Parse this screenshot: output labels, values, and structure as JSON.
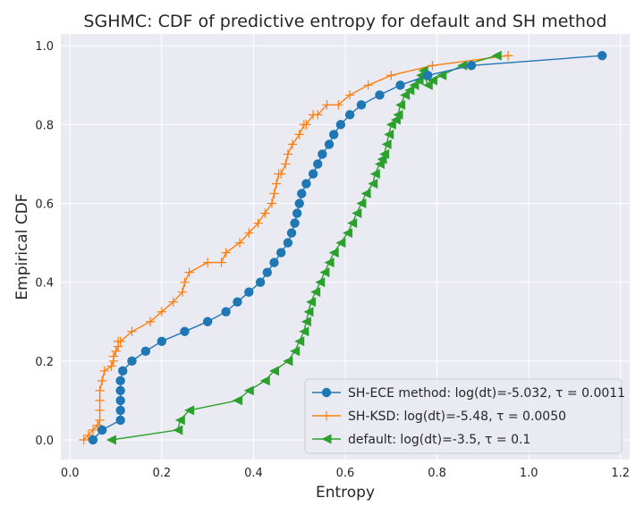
{
  "chart_data": {
    "type": "line",
    "title": "SGHMC: CDF of predictive entropy for default and SH method",
    "xlabel": "Entropy",
    "ylabel": "Empirical CDF",
    "xlim": [
      -0.02,
      1.22
    ],
    "ylim": [
      -0.05,
      1.03
    ],
    "xticks": [
      "0.0",
      "0.2",
      "0.4",
      "0.6",
      "0.8",
      "1.0",
      "1.2"
    ],
    "yticks": [
      "0.0",
      "0.2",
      "0.4",
      "0.6",
      "0.8",
      "1.0"
    ],
    "grid": true,
    "legend_position": "lower-right",
    "series": [
      {
        "name": "SH-ECE",
        "legend_prefix": "SH-ECE method: log(dt)=-5.032, ",
        "legend_tau": "τ = 0.0011",
        "color": "#1f77b4",
        "marker": "circle",
        "x": [
          0.05,
          0.07,
          0.11,
          0.11,
          0.11,
          0.11,
          0.11,
          0.115,
          0.135,
          0.165,
          0.2,
          0.25,
          0.3,
          0.34,
          0.365,
          0.39,
          0.415,
          0.43,
          0.445,
          0.46,
          0.475,
          0.483,
          0.49,
          0.495,
          0.5,
          0.505,
          0.515,
          0.53,
          0.54,
          0.55,
          0.565,
          0.575,
          0.59,
          0.61,
          0.635,
          0.675,
          0.72,
          0.78,
          0.875,
          1.16
        ],
        "y": [
          0.0,
          0.025,
          0.05,
          0.075,
          0.1,
          0.125,
          0.15,
          0.175,
          0.2,
          0.225,
          0.25,
          0.275,
          0.3,
          0.325,
          0.35,
          0.375,
          0.4,
          0.425,
          0.45,
          0.475,
          0.5,
          0.525,
          0.55,
          0.575,
          0.6,
          0.625,
          0.65,
          0.675,
          0.7,
          0.725,
          0.75,
          0.775,
          0.8,
          0.825,
          0.85,
          0.875,
          0.9,
          0.925,
          0.95,
          0.975
        ]
      },
      {
        "name": "SH-KSD",
        "legend_prefix": "SH-KSD: log(dt)=-5.48, ",
        "legend_tau": "τ = 0.0050",
        "color": "#ff7f0e",
        "marker": "plus",
        "x": [
          0.03,
          0.04,
          0.05,
          0.06,
          0.065,
          0.065,
          0.065,
          0.065,
          0.07,
          0.075,
          0.09,
          0.095,
          0.095,
          0.1,
          0.105,
          0.105,
          0.11,
          0.135,
          0.175,
          0.2,
          0.225,
          0.245,
          0.25,
          0.26,
          0.3,
          0.33,
          0.34,
          0.37,
          0.39,
          0.41,
          0.425,
          0.44,
          0.445,
          0.45,
          0.455,
          0.46,
          0.47,
          0.475,
          0.485,
          0.5,
          0.51,
          0.515,
          0.53,
          0.54,
          0.56,
          0.585,
          0.61,
          0.65,
          0.7,
          0.79,
          0.955
        ],
        "y": [
          0.0,
          0.012,
          0.025,
          0.037,
          0.05,
          0.075,
          0.1,
          0.125,
          0.15,
          0.175,
          0.187,
          0.2,
          0.212,
          0.225,
          0.237,
          0.25,
          0.25,
          0.275,
          0.3,
          0.325,
          0.35,
          0.375,
          0.4,
          0.425,
          0.45,
          0.45,
          0.475,
          0.5,
          0.525,
          0.55,
          0.575,
          0.6,
          0.625,
          0.65,
          0.675,
          0.675,
          0.7,
          0.725,
          0.75,
          0.775,
          0.8,
          0.8,
          0.825,
          0.825,
          0.85,
          0.85,
          0.875,
          0.9,
          0.925,
          0.95,
          0.975
        ]
      },
      {
        "name": "default",
        "legend_prefix": "default: log(dt)=-3.5, ",
        "legend_tau": "τ = 0.1",
        "color": "#2ca02c",
        "marker": "triangle-left",
        "x": [
          0.09,
          0.235,
          0.24,
          0.26,
          0.365,
          0.39,
          0.425,
          0.445,
          0.475,
          0.49,
          0.5,
          0.51,
          0.515,
          0.52,
          0.525,
          0.535,
          0.545,
          0.555,
          0.565,
          0.575,
          0.59,
          0.605,
          0.615,
          0.625,
          0.635,
          0.645,
          0.66,
          0.665,
          0.675,
          0.68,
          0.685,
          0.69,
          0.695,
          0.7,
          0.71,
          0.715,
          0.72,
          0.73,
          0.74,
          0.75,
          0.76,
          0.765,
          0.77,
          0.78,
          0.79,
          0.81,
          0.855,
          0.93
        ],
        "y": [
          0.0,
          0.025,
          0.05,
          0.075,
          0.1,
          0.125,
          0.15,
          0.175,
          0.2,
          0.225,
          0.25,
          0.275,
          0.3,
          0.325,
          0.35,
          0.375,
          0.4,
          0.425,
          0.45,
          0.475,
          0.5,
          0.525,
          0.55,
          0.575,
          0.6,
          0.625,
          0.65,
          0.675,
          0.7,
          0.712,
          0.725,
          0.75,
          0.775,
          0.8,
          0.812,
          0.825,
          0.85,
          0.875,
          0.887,
          0.9,
          0.912,
          0.925,
          0.937,
          0.9,
          0.912,
          0.925,
          0.95,
          0.975
        ]
      }
    ]
  }
}
